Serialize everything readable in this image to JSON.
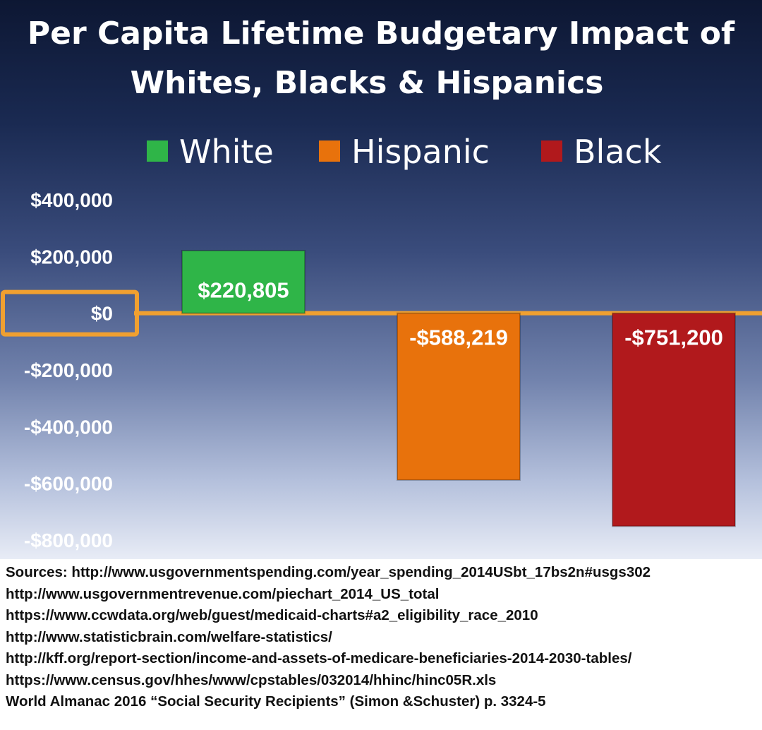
{
  "chart_data": {
    "type": "bar",
    "title": "Per Capita Lifetime Budgetary Impact of Whites, Blacks & Hispanics",
    "title_lines": [
      "Per Capita Lifetime Budgetary Impact of",
      "Whites, Blacks & Hispanics"
    ],
    "xlabel": "",
    "ylabel": "",
    "categories": [
      "White",
      "Hispanic",
      "Black"
    ],
    "values": [
      220805,
      -588219,
      -751200
    ],
    "data_labels": [
      "$220,805",
      "-$588,219",
      "-$751,200"
    ],
    "colors": [
      "#2fb548",
      "#e8720c",
      "#b1191c"
    ],
    "legend": [
      {
        "name": "White",
        "color": "#2fb548"
      },
      {
        "name": "Hispanic",
        "color": "#e8720c"
      },
      {
        "name": "Black",
        "color": "#b1191c"
      }
    ],
    "legend_position": "top",
    "ylim": [
      -800000,
      400000
    ],
    "y_ticks": [
      400000,
      200000,
      0,
      -200000,
      -400000,
      -600000,
      -800000
    ],
    "y_tick_labels": [
      "$400,000",
      "$200,000",
      "$0",
      "-$200,000",
      "-$400,000",
      "-$600,000",
      "-$800,000"
    ],
    "zero_line_color": "#f0a030",
    "grid": false
  },
  "sources": [
    "Sources: http://www.usgovernmentspending.com/year_spending_2014USbt_17bs2n#usgs302",
    "http://www.usgovernmentrevenue.com/piechart_2014_US_total",
    "https://www.ccwdata.org/web/guest/medicaid-charts#a2_eligibility_race_2010",
    "http://www.statisticbrain.com/welfare-statistics/",
    "http://kff.org/report-section/income-and-assets-of-medicare-beneficiaries-2014-2030-tables/",
    "https://www.census.gov/hhes/www/cpstables/032014/hhinc/hinc05R.xls",
    "World Almanac 2016 “Social Security Recipients” (Simon &Schuster) p. 3324-5"
  ]
}
